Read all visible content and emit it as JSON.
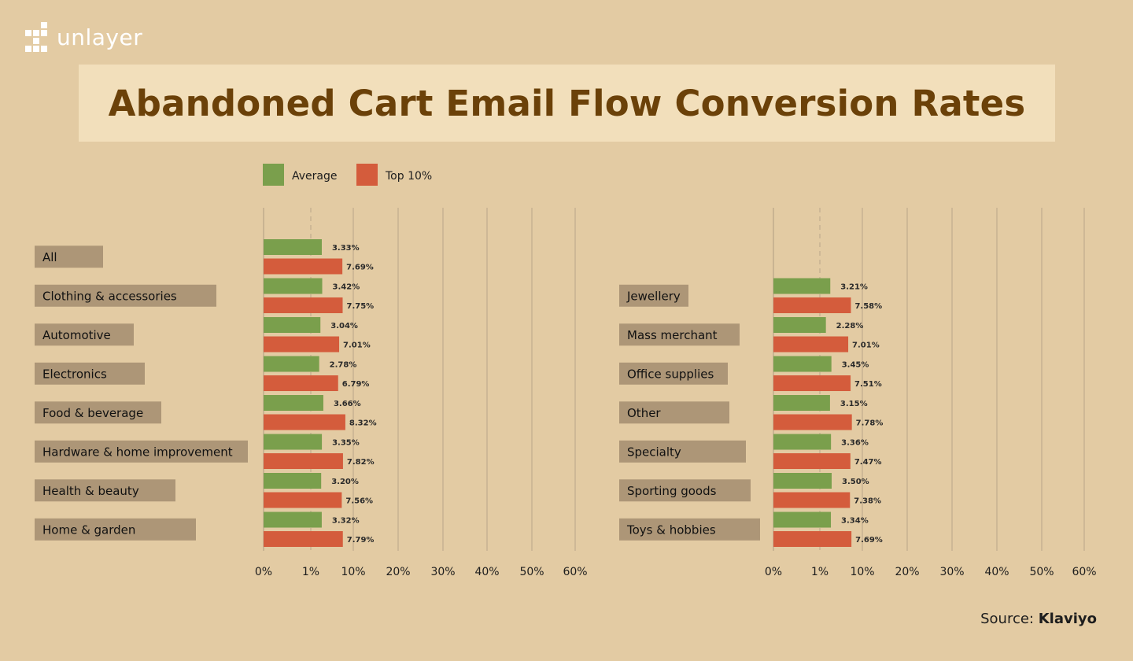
{
  "brand": {
    "name": "unlayer",
    "icon": "grid-logo-icon",
    "color": "#ffffff"
  },
  "title": "Abandoned Cart Email Flow Conversion Rates",
  "source": {
    "label": "Source:",
    "name": "Klaviyo"
  },
  "colors": {
    "background": "#e3cba3",
    "title_box": "#f2dfbb",
    "title_text": "#6b4109",
    "average": "#7a9f4c",
    "top10": "#d45c3c",
    "label_box": "#ad9677"
  },
  "chart_data": {
    "type": "bar",
    "orientation": "horizontal",
    "legend": {
      "placement": "top",
      "entries": [
        {
          "name": "Average",
          "color": "#7a9f4c"
        },
        {
          "name": "Top 10%",
          "color": "#d45c3c"
        }
      ]
    },
    "x_ticks": [
      "0%",
      "1%",
      "10%",
      "20%",
      "30%",
      "40%",
      "50%",
      "60%"
    ],
    "grid": true,
    "panels": [
      {
        "categories": [
          "All",
          "Clothing & accessories",
          "Automotive",
          "Electronics",
          "Food & beverage",
          "Hardware & home improvement",
          "Health & beauty",
          "Home & garden"
        ],
        "series": [
          {
            "name": "Average",
            "values": [
              3.33,
              3.42,
              3.04,
              2.78,
              3.66,
              3.35,
              3.2,
              3.32
            ],
            "labels": [
              "3.33%",
              "3.42%",
              "3.04%",
              "2.78%",
              "3.66%",
              "3.35%",
              "3.20%",
              "3.32%"
            ]
          },
          {
            "name": "Top 10%",
            "values": [
              7.69,
              7.75,
              7.01,
              6.79,
              8.32,
              7.82,
              7.56,
              7.79
            ],
            "labels": [
              "7.69%",
              "7.75%",
              "7.01%",
              "6.79%",
              "8.32%",
              "7.82%",
              "7.56%",
              "7.79%"
            ]
          }
        ]
      },
      {
        "categories": [
          "Jewellery",
          "Mass merchant",
          "Office supplies",
          "Other",
          "Specialty",
          "Sporting goods",
          "Toys & hobbies"
        ],
        "series": [
          {
            "name": "Average",
            "values": [
              3.21,
              2.28,
              3.45,
              3.15,
              3.36,
              3.5,
              3.34
            ],
            "labels": [
              "3.21%",
              "2.28%",
              "3.45%",
              "3.15%",
              "3.36%",
              "3.50%",
              "3.34%"
            ]
          },
          {
            "name": "Top 10%",
            "values": [
              7.58,
              7.01,
              7.51,
              7.78,
              7.47,
              7.38,
              7.69
            ],
            "labels": [
              "7.58%",
              "7.01%",
              "7.51%",
              "7.78%",
              "7.47%",
              "7.38%",
              "7.69%"
            ]
          }
        ]
      }
    ]
  }
}
